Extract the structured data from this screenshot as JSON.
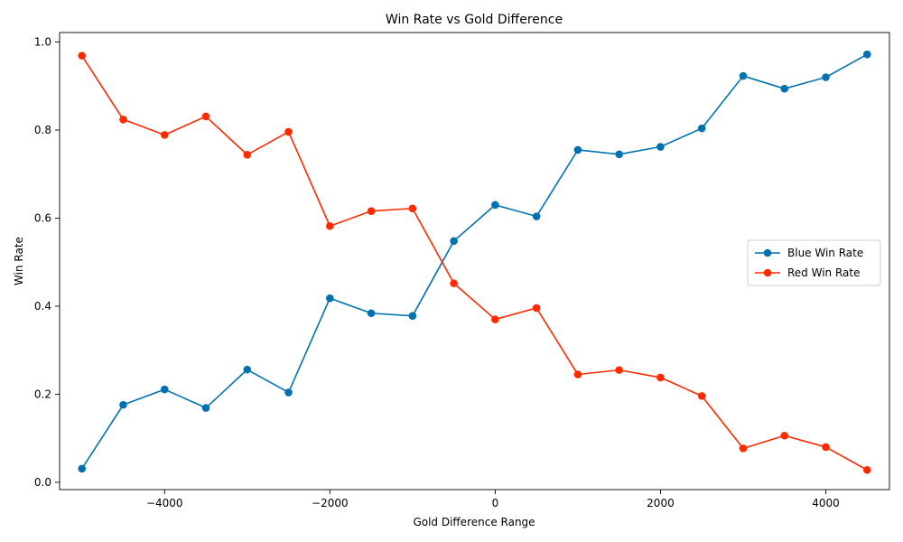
{
  "chart_data": {
    "type": "line",
    "title": "Win Rate vs Gold Difference",
    "xlabel": "Gold Difference Range",
    "ylabel": "Win Rate",
    "xlim": [
      -5270,
      4770
    ],
    "ylim": [
      -0.0166,
      1.0216
    ],
    "x_ticks": [
      -4000,
      -2000,
      0,
      2000,
      4000
    ],
    "x_tick_labels": [
      "−4000",
      "−2000",
      "0",
      "2000",
      "4000"
    ],
    "y_ticks": [
      0.0,
      0.2,
      0.4,
      0.6,
      0.8,
      1.0
    ],
    "y_tick_labels": [
      "0.0",
      "0.2",
      "0.4",
      "0.6",
      "0.8",
      "1.0"
    ],
    "grid": false,
    "legend_position": "center-right",
    "x": [
      -5000,
      -4500,
      -4000,
      -3500,
      -3000,
      -2500,
      -2000,
      -1500,
      -1000,
      -500,
      0,
      500,
      1000,
      1500,
      2000,
      2500,
      3000,
      3500,
      4000,
      4500
    ],
    "series": [
      {
        "name": "Blue Win Rate",
        "color": "#0072b2",
        "values": [
          0.031,
          0.176,
          0.211,
          0.169,
          0.256,
          0.204,
          0.418,
          0.384,
          0.378,
          0.548,
          0.63,
          0.604,
          0.755,
          0.745,
          0.762,
          0.804,
          0.923,
          0.894,
          0.92,
          0.972
        ]
      },
      {
        "name": "Red Win Rate",
        "color": "#ff2a00",
        "values": [
          0.969,
          0.824,
          0.789,
          0.831,
          0.744,
          0.796,
          0.582,
          0.616,
          0.622,
          0.452,
          0.37,
          0.396,
          0.245,
          0.255,
          0.238,
          0.196,
          0.077,
          0.106,
          0.08,
          0.028
        ]
      }
    ]
  }
}
